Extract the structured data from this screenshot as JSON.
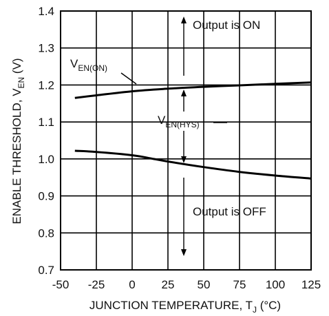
{
  "chart_data": {
    "type": "line",
    "xlabel_main": "JUNCTION TEMPERATURE, T",
    "xlabel_sub": "J",
    "xlabel_unit": " (°C)",
    "ylabel_main": "ENABLE THRESHOLD, V",
    "ylabel_sub": "EN",
    "ylabel_unit": " (V)",
    "xlim": [
      -50,
      125
    ],
    "ylim": [
      0.7,
      1.4
    ],
    "xticks": [
      -50,
      -25,
      0,
      25,
      50,
      75,
      100,
      125
    ],
    "yticks": [
      0.7,
      0.8,
      0.9,
      1.0,
      1.1,
      1.2,
      1.3,
      1.4
    ],
    "xtick_labels": [
      "-50",
      "-25",
      "0",
      "25",
      "50",
      "75",
      "100",
      "125"
    ],
    "ytick_labels": [
      "0.7",
      "0.8",
      "0.9",
      "1.0",
      "1.1",
      "1.2",
      "1.3",
      "1.4"
    ],
    "grid": true,
    "series": [
      {
        "x": [
          -40,
          -25,
          0,
          25,
          50,
          75,
          100,
          125
        ],
        "y": [
          1.165,
          1.172,
          1.183,
          1.19,
          1.195,
          1.199,
          1.203,
          1.207
        ]
      },
      {
        "x": [
          -40,
          -25,
          0,
          15,
          25,
          50,
          75,
          100,
          125
        ],
        "y": [
          1.022,
          1.019,
          1.01,
          1.0,
          0.993,
          0.978,
          0.965,
          0.955,
          0.947
        ]
      }
    ],
    "annotations": {
      "on_label_main": "V",
      "on_label_sub": "EN(ON)",
      "hys_label_main": "V",
      "hys_label_sub": "EN(HYS)",
      "output_on": "Output is ON",
      "output_off": "Output is OFF"
    }
  }
}
